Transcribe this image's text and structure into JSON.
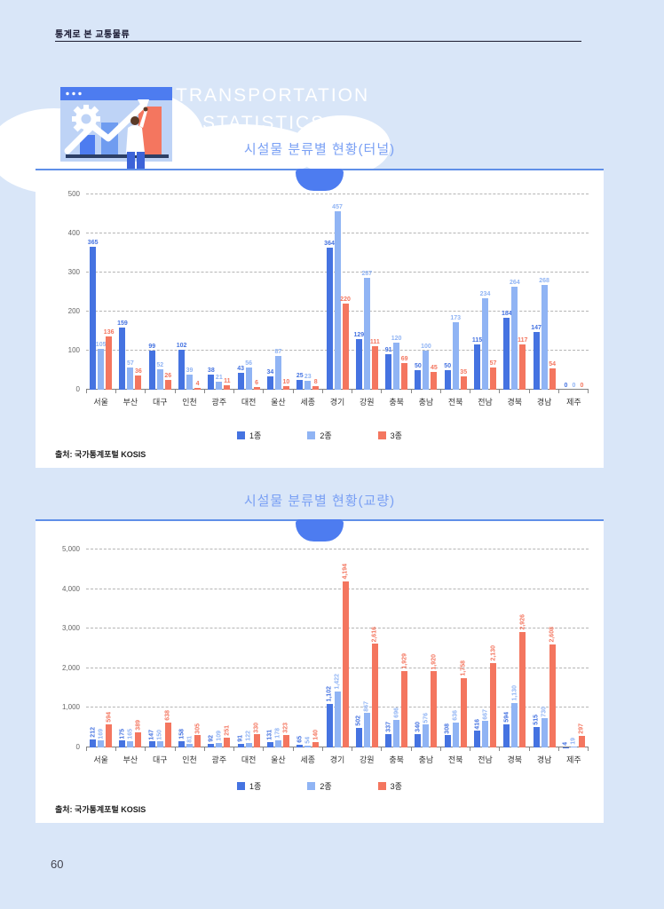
{
  "page": {
    "header": "통계로 본 교통물류",
    "page_number": "60"
  },
  "hero": {
    "line1": "TRANSPORTATION",
    "line2": "STATISTICS"
  },
  "colors": {
    "background": "#d9e6f8",
    "card": "#ffffff",
    "title_blue": "#7aa0f4",
    "tab_blue": "#4d7cf0",
    "series1_blue": "#4573e1",
    "series2_lightblue": "#90b4f4",
    "series3_salmon": "#f4765f"
  },
  "chart_data": [
    {
      "type": "bar",
      "title": "시설물 분류별 현황(터널)",
      "source": "출처: 국가통계포털 KOSIS",
      "xlabel": "",
      "ylabel": "",
      "ylim": [
        0,
        500
      ],
      "ytick_step": 100,
      "grid": true,
      "legend_position": "bottom",
      "label_orientation": "horizontal",
      "comma": false,
      "categories": [
        "서울",
        "부산",
        "대구",
        "인천",
        "광주",
        "대전",
        "울산",
        "세종",
        "경기",
        "강원",
        "충북",
        "충남",
        "전북",
        "전남",
        "경북",
        "경남",
        "제주"
      ],
      "series": [
        {
          "name": "1종",
          "color": "#4573e1",
          "values": [
            365,
            159,
            99,
            102,
            38,
            43,
            34,
            25,
            364,
            129,
            91,
            50,
            50,
            115,
            184,
            147,
            0
          ]
        },
        {
          "name": "2종",
          "color": "#90b4f4",
          "values": [
            105,
            57,
            52,
            39,
            21,
            56,
            87,
            23,
            457,
            287,
            120,
            100,
            173,
            234,
            264,
            268,
            0
          ]
        },
        {
          "name": "3종",
          "color": "#f4765f",
          "values": [
            136,
            36,
            26,
            4,
            11,
            6,
            10,
            8,
            220,
            111,
            69,
            45,
            35,
            57,
            117,
            54,
            0
          ]
        }
      ]
    },
    {
      "type": "bar",
      "title": "시설물 분류별 현황(교량)",
      "source": "출처: 국가통계포털 KOSIS",
      "xlabel": "",
      "ylabel": "",
      "ylim": [
        0,
        5000
      ],
      "ytick_step": 1000,
      "grid": true,
      "legend_position": "bottom",
      "label_orientation": "vertical",
      "comma": true,
      "categories": [
        "서울",
        "부산",
        "대구",
        "인천",
        "광주",
        "대전",
        "울산",
        "세종",
        "경기",
        "강원",
        "충북",
        "충남",
        "전북",
        "전남",
        "경북",
        "경남",
        "제주"
      ],
      "series": [
        {
          "name": "1종",
          "color": "#4573e1",
          "values": [
            212,
            175,
            147,
            158,
            92,
            91,
            131,
            65,
            1102,
            502,
            337,
            340,
            308,
            416,
            594,
            515,
            4
          ]
        },
        {
          "name": "2종",
          "color": "#90b4f4",
          "values": [
            169,
            165,
            150,
            81,
            109,
            122,
            178,
            54,
            1422,
            867,
            696,
            576,
            636,
            667,
            1130,
            730,
            19
          ]
        },
        {
          "name": "3종",
          "color": "#f4765f",
          "values": [
            594,
            389,
            638,
            305,
            251,
            330,
            323,
            140,
            4194,
            2616,
            1929,
            1920,
            1758,
            2130,
            2926,
            2608,
            297
          ]
        }
      ]
    }
  ]
}
